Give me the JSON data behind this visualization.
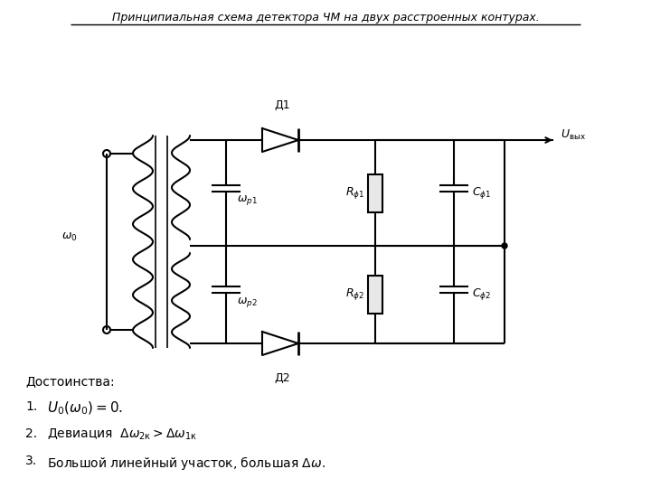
{
  "title": "Принципиальная схема детектора ЧМ на двух расстроенных контурах.",
  "bg_color": "#ffffff",
  "text_color": "#000000",
  "line_color": "#000000",
  "line_width": 1.5,
  "advantages_label": "Достоинства:",
  "label_omega0": "$\\omega_0$",
  "label_omegap1": "$\\omega_{p1}$",
  "label_omegap2": "$\\omega_{p2}$",
  "label_D1": "Д1",
  "label_D2": "Д2",
  "label_Rf1": "$R_{\\phi1}$",
  "label_Rf2": "$R_{\\phi2}$",
  "label_Cf1": "$C_{\\phi1}$",
  "label_Cf2": "$C_{\\phi2}$",
  "label_Uvyx": "$U_{\\text{вых}}$"
}
